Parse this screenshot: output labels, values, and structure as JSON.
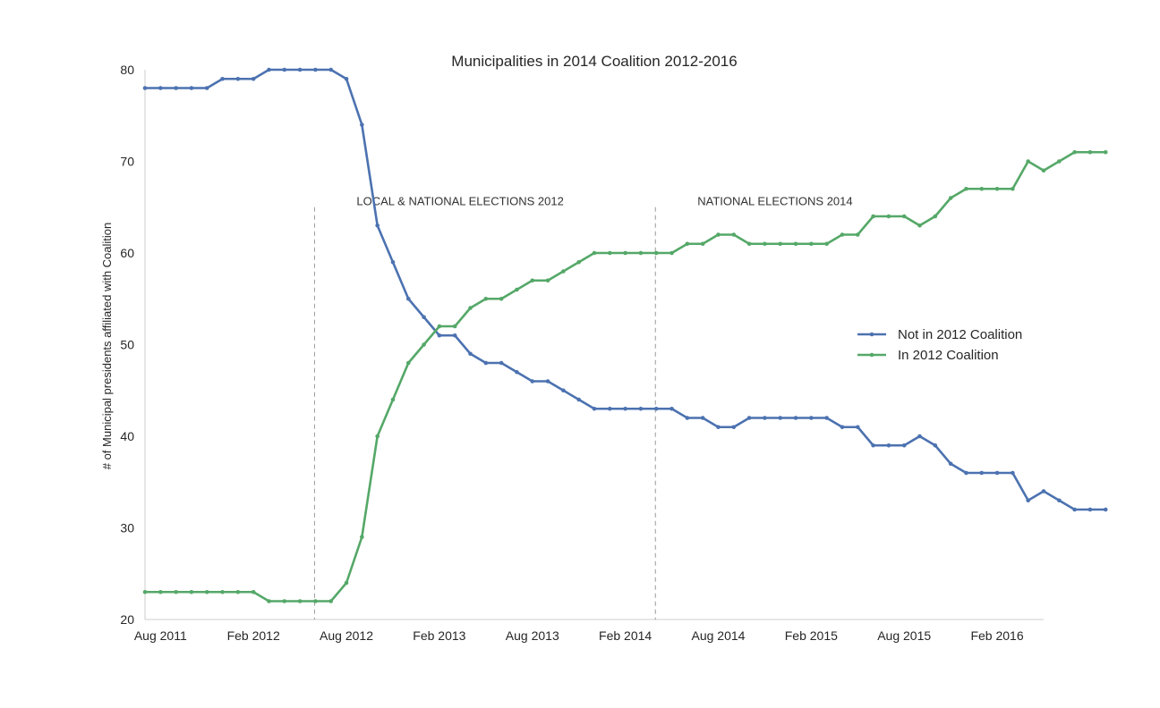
{
  "chart_data": {
    "type": "line",
    "title": "Municipalities in 2014 Coalition 2012-2016",
    "xlabel": "",
    "ylabel": "# of Municipal presidents affiliated with Coalition",
    "ylim": [
      20,
      80
    ],
    "yticks": [
      20,
      30,
      40,
      50,
      60,
      70,
      80
    ],
    "x_start": "Jul 2011",
    "x_end": "May 2016",
    "xtick_labels": [
      "Aug 2011",
      "Feb 2012",
      "Aug 2012",
      "Feb 2013",
      "Aug 2013",
      "Feb 2014",
      "Aug 2014",
      "Feb 2015",
      "Aug 2015",
      "Feb 2016"
    ],
    "grid": false,
    "legend_position": "center-right",
    "annotations": [
      {
        "date": "Jun 2012",
        "label": "LOCAL & NATIONAL ELECTIONS 2012"
      },
      {
        "date": "Apr 2014",
        "label": "NATIONAL ELECTIONS 2014"
      }
    ],
    "series": [
      {
        "name": "Not in 2012 Coalition",
        "color": "#4c72b0",
        "values": [
          78,
          78,
          78,
          78,
          78,
          79,
          79,
          79,
          80,
          80,
          80,
          80,
          80,
          79,
          74,
          63,
          59,
          55,
          53,
          51,
          51,
          49,
          48,
          48,
          47,
          46,
          46,
          45,
          44,
          43,
          43,
          43,
          43,
          43,
          43,
          42,
          42,
          41,
          41,
          42,
          42,
          42,
          42,
          42,
          42,
          41,
          41,
          39,
          39,
          39,
          40,
          39,
          37,
          36,
          36,
          36,
          36,
          33,
          34,
          33,
          32,
          32,
          32
        ]
      },
      {
        "name": "In 2012 Coalition",
        "color": "#55a868",
        "values": [
          23,
          23,
          23,
          23,
          23,
          23,
          23,
          23,
          22,
          22,
          22,
          22,
          22,
          24,
          29,
          40,
          44,
          48,
          50,
          52,
          52,
          54,
          55,
          55,
          56,
          57,
          57,
          58,
          59,
          60,
          60,
          60,
          60,
          60,
          60,
          61,
          61,
          62,
          62,
          61,
          61,
          61,
          61,
          61,
          61,
          62,
          62,
          64,
          64,
          64,
          63,
          64,
          66,
          67,
          67,
          67,
          67,
          70,
          69,
          70,
          71,
          71,
          71
        ]
      }
    ]
  }
}
